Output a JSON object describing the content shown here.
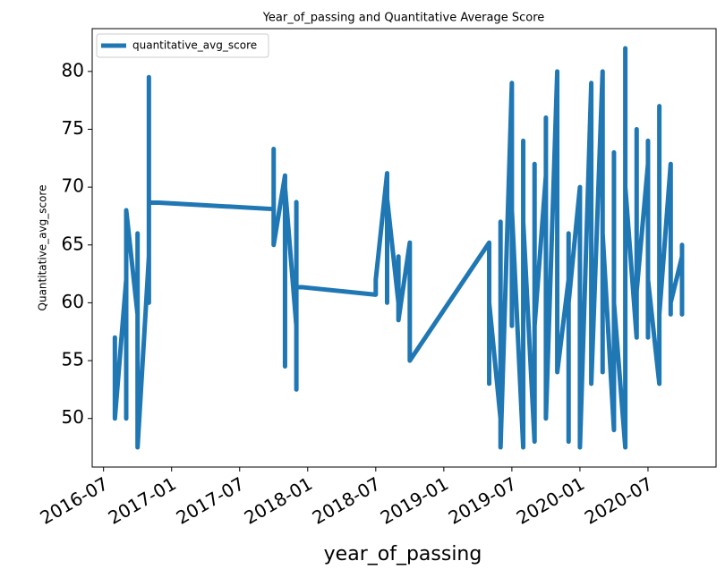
{
  "chart_data": {
    "type": "line",
    "title": "Year_of_passing and Quantitative Average Score",
    "x_label": "year_of_passing",
    "y_label": "Quantitative_avg_score",
    "legend": "upper left",
    "x": [
      "2016-08",
      "2016-08",
      "2016-08",
      "2016-09",
      "2016-09",
      "2016-09",
      "2016-10",
      "2016-10",
      "2016-10",
      "2016-10",
      "2016-11",
      "2016-11",
      "2016-11",
      "2016-11",
      "2016-11",
      "2017-10",
      "2017-10",
      "2017-10",
      "2017-11",
      "2017-11",
      "2017-11",
      "2017-11",
      "2017-11",
      "2017-12",
      "2017-12",
      "2017-12",
      "2017-12",
      "2018-07",
      "2018-07",
      "2018-08",
      "2018-08",
      "2018-08",
      "2018-09",
      "2018-09",
      "2018-09",
      "2018-10",
      "2018-10",
      "2018-10",
      "2019-05",
      "2019-05",
      "2019-05",
      "2019-06",
      "2019-06",
      "2019-06",
      "2019-06",
      "2019-07",
      "2019-07",
      "2019-07",
      "2019-07",
      "2019-07",
      "2019-07",
      "2019-08",
      "2019-08",
      "2019-08",
      "2019-08",
      "2019-08",
      "2019-08",
      "2019-09",
      "2019-09",
      "2019-09",
      "2019-09",
      "2019-09",
      "2019-09",
      "2019-10",
      "2019-10",
      "2019-10",
      "2019-10",
      "2019-10",
      "2019-10",
      "2019-11",
      "2019-11",
      "2019-11",
      "2019-11",
      "2019-11",
      "2019-11",
      "2019-12",
      "2019-12",
      "2019-12",
      "2019-12",
      "2019-12",
      "2019-12",
      "2020-01",
      "2020-01",
      "2020-01",
      "2020-01",
      "2020-01",
      "2020-01",
      "2020-02",
      "2020-02",
      "2020-02",
      "2020-02",
      "2020-02",
      "2020-02",
      "2020-03",
      "2020-03",
      "2020-03",
      "2020-03",
      "2020-03",
      "2020-03",
      "2020-04",
      "2020-04",
      "2020-04",
      "2020-04",
      "2020-04",
      "2020-04",
      "2020-05",
      "2020-05",
      "2020-05",
      "2020-05",
      "2020-05",
      "2020-05",
      "2020-06",
      "2020-06",
      "2020-06",
      "2020-06",
      "2020-06",
      "2020-06",
      "2020-07",
      "2020-07",
      "2020-07",
      "2020-07",
      "2020-07",
      "2020-07",
      "2020-08",
      "2020-08",
      "2020-08",
      "2020-08",
      "2020-08",
      "2020-08",
      "2020-09",
      "2020-09",
      "2020-09",
      "2020-09",
      "2020-09",
      "2020-09",
      "2020-10",
      "2020-10",
      "2020-10",
      "2020-10",
      "2020-10",
      "2020-10"
    ],
    "series": [
      {
        "name": "quantitative_avg_score",
        "color": "#1f77b4",
        "values": [
          52.5,
          57,
          50,
          62,
          50,
          68,
          59,
          66,
          58,
          47.5,
          64,
          79.5,
          60,
          75,
          68.7,
          68.1,
          73.3,
          65,
          71,
          62,
          69.5,
          54.5,
          70,
          58,
          68.7,
          52.5,
          61.4,
          60.7,
          62,
          71.2,
          60,
          69,
          60,
          64,
          58.5,
          65.2,
          59,
          55,
          65.2,
          53,
          60,
          50,
          67,
          59,
          47.5,
          79,
          63,
          72,
          58,
          76,
          68,
          47.5,
          70,
          55,
          74,
          60,
          67,
          48,
          72,
          62,
          56,
          68,
          58,
          71,
          54,
          76,
          60,
          66,
          50,
          80,
          57,
          69,
          61,
          72,
          54,
          62,
          58,
          66,
          48,
          64,
          60,
          70,
          52,
          67,
          57,
          63,
          47.5,
          79,
          55,
          65,
          59,
          72,
          53,
          80,
          61,
          54,
          68,
          58,
          66,
          49,
          71,
          61,
          56,
          73,
          60,
          47.5,
          82,
          60,
          77,
          62,
          70,
          57,
          73,
          64,
          59,
          75,
          61,
          72,
          58,
          68,
          57,
          74,
          62,
          53,
          77,
          60,
          70,
          63,
          59,
          72,
          59,
          66,
          62,
          68,
          60,
          64,
          59,
          65,
          60,
          64,
          62
        ]
      }
    ],
    "xlim": [
      "2016-06",
      "2021-01"
    ],
    "xticks": [
      "2016-07",
      "2017-01",
      "2017-07",
      "2018-01",
      "2018-07",
      "2019-01",
      "2019-07",
      "2020-01",
      "2020-07"
    ],
    "ylim": [
      45.8,
      83.7
    ],
    "yticks": [
      50,
      55,
      60,
      65,
      70,
      75,
      80
    ]
  }
}
